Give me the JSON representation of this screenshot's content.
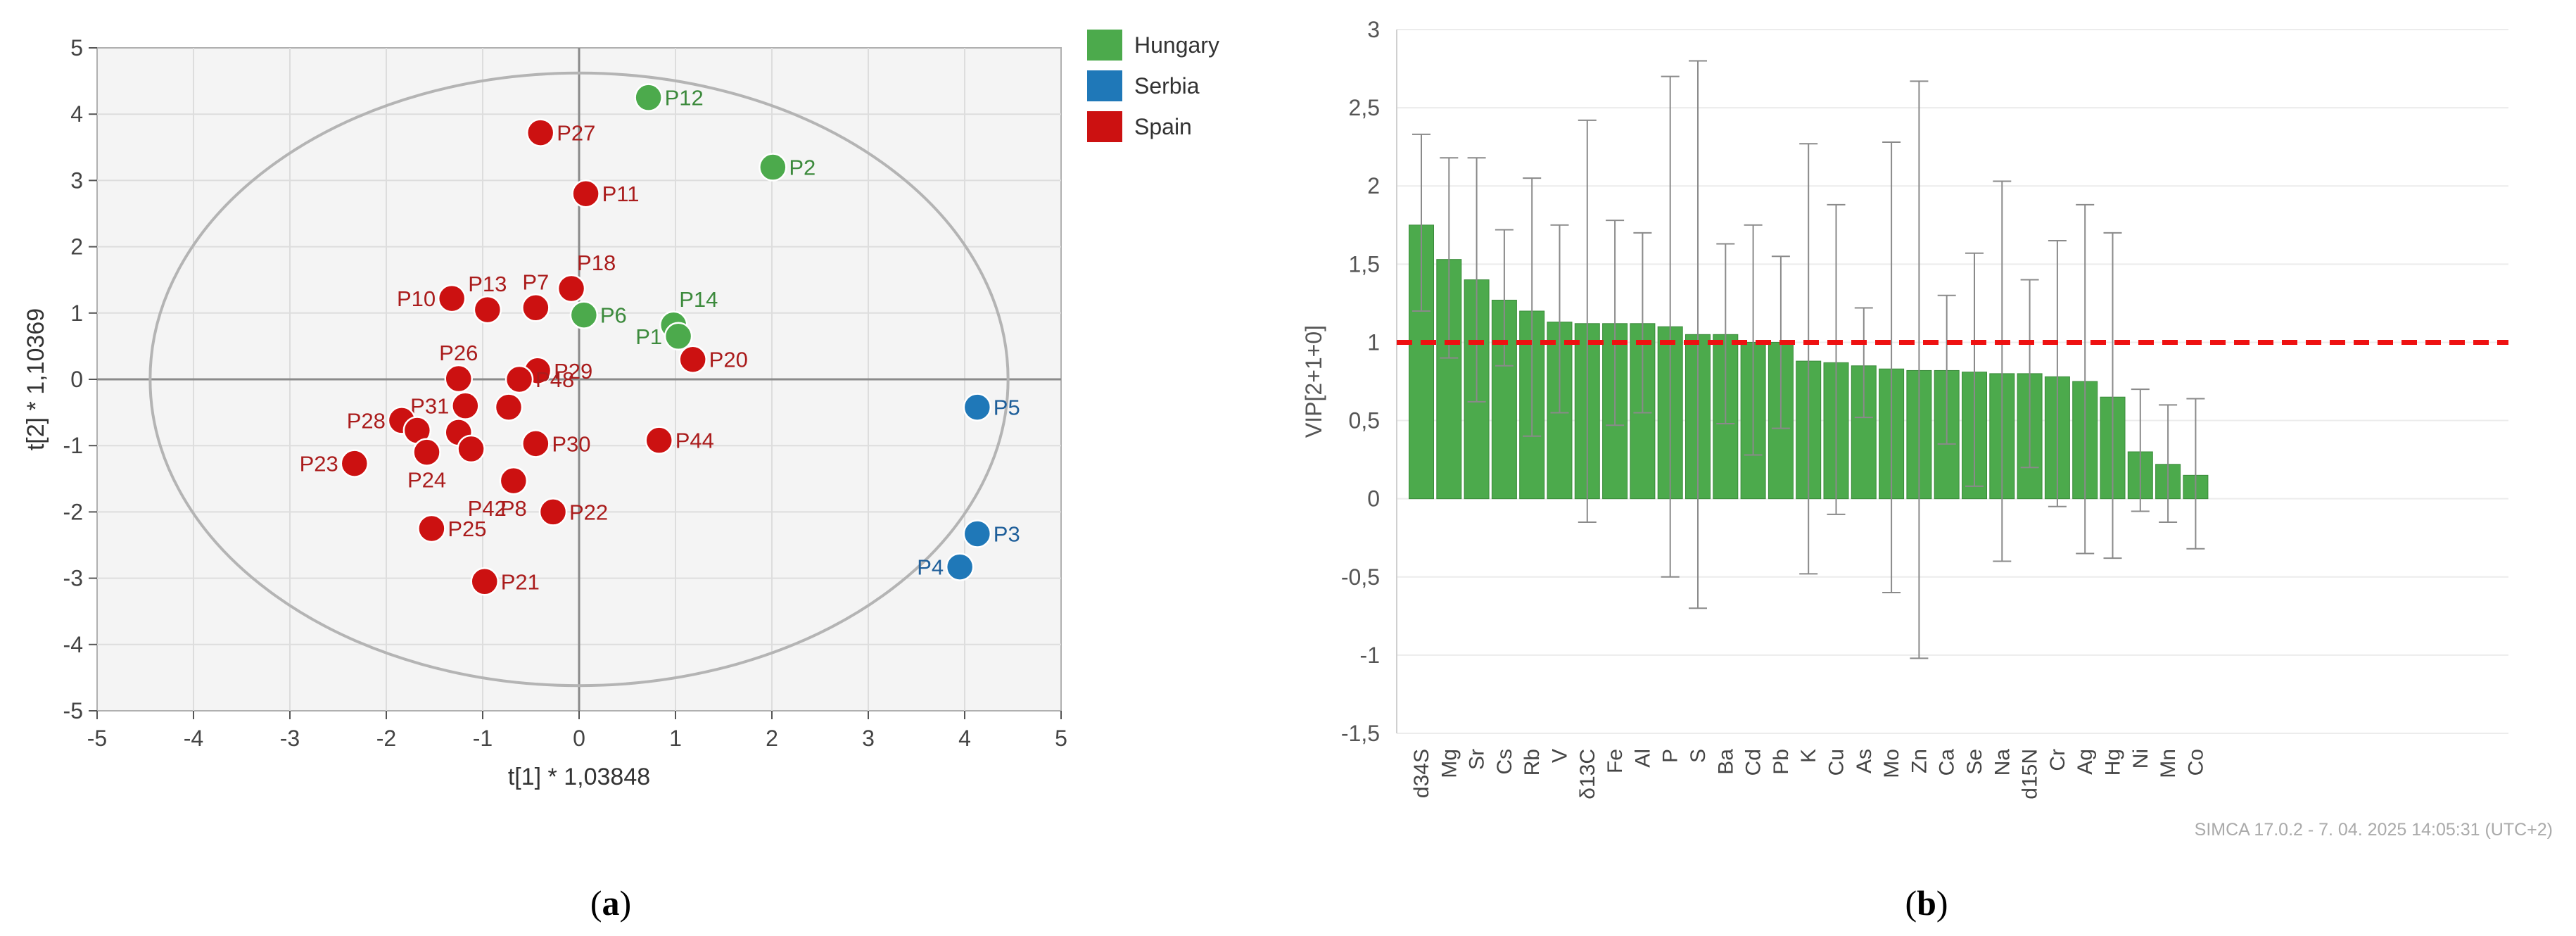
{
  "chart_data": [
    {
      "type": "scatter",
      "xlabel": "t[1] * 1,03848",
      "ylabel": "t[2] * 1,10369",
      "xlim": [
        -5,
        5
      ],
      "ylim": [
        -5,
        5
      ],
      "x_ticks": [
        "-5",
        "-4",
        "-3",
        "-2",
        "-1",
        "0",
        "1",
        "2",
        "3",
        "4",
        "5"
      ],
      "y_ticks": [
        "5",
        "4",
        "3",
        "2",
        "1",
        "0",
        "-1",
        "-2",
        "-3",
        "-4",
        "-5"
      ],
      "grid": true,
      "legend_position": "right",
      "hotelling_ellipse": true,
      "legend": [
        {
          "name": "Hungary",
          "color": "#4caa4c"
        },
        {
          "name": "Serbia",
          "color": "#1f78b8"
        },
        {
          "name": "Spain",
          "color": "#cc1111"
        }
      ],
      "series": [
        {
          "name": "Hungary",
          "color": "#4caa4c",
          "label_color": "#3c8a3c",
          "points": [
            {
              "label": "P12",
              "x": 0.72,
              "y": 4.25,
              "label_side": "right"
            },
            {
              "label": "P2",
              "x": 2.01,
              "y": 3.2,
              "label_side": "right"
            },
            {
              "label": "P6",
              "x": 0.05,
              "y": 0.97,
              "label_side": "right"
            },
            {
              "label": "P14",
              "x": 0.98,
              "y": 0.82,
              "label_side": "upright"
            },
            {
              "label": "P1",
              "x": 1.03,
              "y": 0.65,
              "label_side": "left"
            }
          ]
        },
        {
          "name": "Serbia",
          "color": "#1f78b8",
          "label_color": "#1f5f9a",
          "points": [
            {
              "label": "P5",
              "x": 4.13,
              "y": -0.42,
              "label_side": "right"
            },
            {
              "label": "P3",
              "x": 4.13,
              "y": -2.33,
              "label_side": "right"
            },
            {
              "label": "P4",
              "x": 3.95,
              "y": -2.83,
              "label_side": "left"
            }
          ]
        },
        {
          "name": "Spain",
          "color": "#cc1111",
          "label_color": "#aa1c1c",
          "points": [
            {
              "label": "P27",
              "x": -0.4,
              "y": 3.72,
              "label_side": "right"
            },
            {
              "label": "P11",
              "x": 0.07,
              "y": 2.8,
              "label_side": "right"
            },
            {
              "label": "P18",
              "x": -0.08,
              "y": 1.37,
              "label_side": "upright"
            },
            {
              "label": "P7",
              "x": -0.45,
              "y": 1.08,
              "label_side": "up"
            },
            {
              "label": "P13",
              "x": -0.95,
              "y": 1.05,
              "label_side": "up"
            },
            {
              "label": "P10",
              "x": -1.32,
              "y": 1.22,
              "label_side": "left"
            },
            {
              "label": "P20",
              "x": 1.18,
              "y": 0.3,
              "label_side": "right"
            },
            {
              "label": "P26",
              "x": -1.25,
              "y": 0.01,
              "label_side": "up"
            },
            {
              "label": "P29",
              "x": -0.43,
              "y": 0.13,
              "label_side": "right"
            },
            {
              "label": "P48",
              "x": -0.62,
              "y": 0.0,
              "label_side": "right"
            },
            {
              "label": "P31",
              "x": -1.18,
              "y": -0.4,
              "label_side": "left"
            },
            {
              "label": "",
              "x": -0.73,
              "y": -0.42,
              "label_side": "none"
            },
            {
              "label": "P28",
              "x": -1.84,
              "y": -0.62,
              "label_side": "left"
            },
            {
              "label": "",
              "x": -1.68,
              "y": -0.77,
              "label_side": "none"
            },
            {
              "label": "",
              "x": -1.25,
              "y": -0.8,
              "label_side": "none"
            },
            {
              "label": "",
              "x": -1.12,
              "y": -1.05,
              "label_side": "none"
            },
            {
              "label": "P30",
              "x": -0.45,
              "y": -0.97,
              "label_side": "right"
            },
            {
              "label": "P44",
              "x": 0.83,
              "y": -0.92,
              "label_side": "right"
            },
            {
              "label": "P23",
              "x": -2.33,
              "y": -1.27,
              "label_side": "left"
            },
            {
              "label": "P24",
              "x": -1.58,
              "y": -1.1,
              "label_side": "down"
            },
            {
              "label": "P42",
              "x": -0.68,
              "y": -1.53,
              "label_side": "downleft"
            },
            {
              "label": "P8",
              "x": -0.68,
              "y": -1.53,
              "label_side": "down"
            },
            {
              "label": "P22",
              "x": -0.27,
              "y": -2.0,
              "label_side": "right"
            },
            {
              "label": "P25",
              "x": -1.53,
              "y": -2.25,
              "label_side": "right"
            },
            {
              "label": "P21",
              "x": -0.98,
              "y": -3.05,
              "label_side": "right"
            }
          ]
        }
      ]
    },
    {
      "type": "bar",
      "ylabel": "VIP[2+1+0]",
      "ylim": [
        -1.5,
        3
      ],
      "y_ticks": [
        "3",
        "2,5",
        "2",
        "1,5",
        "1",
        "0,5",
        "0",
        "-0,5",
        "-1",
        "-1,5"
      ],
      "grid": true,
      "bar_color": "#4caa4c",
      "threshold": {
        "value": 1,
        "color": "#ee1111",
        "style": "dashed"
      },
      "categories": [
        "d34S",
        "Mg",
        "Sr",
        "Cs",
        "Rb",
        "V",
        "δ13C",
        "Fe",
        "Al",
        "P",
        "S",
        "Ba",
        "Cd",
        "Pb",
        "K",
        "Cu",
        "As",
        "Mo",
        "Zn",
        "Ca",
        "Se",
        "Na",
        "d15N",
        "Cr",
        "Ag",
        "Hg",
        "Ni",
        "Mn",
        "Co"
      ],
      "values": [
        1.75,
        1.53,
        1.4,
        1.27,
        1.2,
        1.13,
        1.12,
        1.12,
        1.12,
        1.1,
        1.05,
        1.05,
        1.0,
        1.0,
        0.88,
        0.87,
        0.85,
        0.83,
        0.82,
        0.82,
        0.81,
        0.8,
        0.8,
        0.78,
        0.75,
        0.65,
        0.3,
        0.22,
        0.15
      ],
      "error_low": [
        1.2,
        0.9,
        0.62,
        0.85,
        0.4,
        0.55,
        -0.15,
        0.47,
        0.55,
        -0.5,
        -0.7,
        0.48,
        0.28,
        0.45,
        -0.48,
        -0.1,
        0.52,
        -0.6,
        -1.02,
        0.35,
        0.08,
        -0.4,
        0.2,
        -0.05,
        -0.35,
        -0.38,
        -0.08,
        -0.15,
        -0.32
      ],
      "error_high": [
        2.33,
        2.18,
        2.18,
        1.72,
        2.05,
        1.75,
        2.42,
        1.78,
        1.7,
        2.7,
        2.8,
        1.63,
        1.75,
        1.55,
        2.27,
        1.88,
        1.22,
        2.28,
        2.67,
        1.3,
        1.57,
        2.03,
        1.4,
        1.65,
        1.88,
        1.7,
        0.7,
        0.6,
        0.64
      ],
      "footer": "SIMCA 17.0.2 - 7. 04. 2025 14:05:31 (UTC+2)"
    }
  ],
  "captions": {
    "a": {
      "open": "(",
      "letter": "a",
      "close": ")"
    },
    "b": {
      "open": "(",
      "letter": "b",
      "close": ")"
    }
  }
}
